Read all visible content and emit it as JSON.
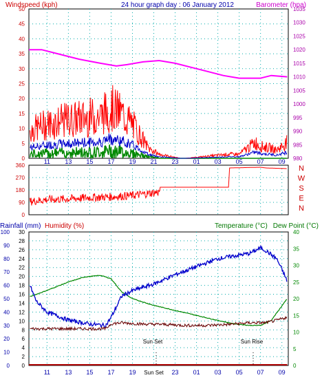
{
  "header": {
    "left_title": "Windspeed (kph)",
    "center_title": "24 hour graph day : 06 January 2012",
    "right_title": "Barometer (hpa)"
  },
  "lower_header": {
    "rainfall": "Rainfall (mm)",
    "humidity": "Humidity (%)",
    "temperature": "Temperature (°C)",
    "dewpoint": "Dew Point (°C)"
  },
  "annotations": {
    "sunset": "Sun Set",
    "sunrise": "Sun Rise"
  },
  "colors": {
    "windspeed": "#ff0000",
    "wind_blue": "#0000cc",
    "wind_green": "#008800",
    "barometer": "#ff00ff",
    "direction": "#ff0000",
    "humidity": "#0000cc",
    "temperature": "#008800",
    "dewpoint": "#660000",
    "rain": "#aa0000",
    "rain_axis": "#0000aa",
    "left_axis": "#cc0000",
    "right_axis": "#aa00aa",
    "bg": "#ffffff",
    "grid": "#00aaaa"
  },
  "chart_data": [
    {
      "type": "line",
      "name_panel": "wind-barometer",
      "title": "24 hour graph day : 06 January 2012",
      "x_ticks": [
        "11",
        "13",
        "15",
        "17",
        "19",
        "21",
        "23",
        "01",
        "03",
        "05",
        "07",
        "09"
      ],
      "left_axis": {
        "label": "Windspeed (kph)",
        "ticks": [
          "0",
          "5",
          "10",
          "15",
          "20",
          "25",
          "30",
          "35",
          "40",
          "45",
          "50"
        ],
        "ylim": [
          0,
          50
        ]
      },
      "right_axis": {
        "label": "Barometer (hpa)",
        "ticks": [
          "980",
          "985",
          "990",
          "995",
          "1000",
          "1005",
          "1010",
          "1015",
          "1020",
          "1025",
          "1030",
          "1035"
        ],
        "ylim": [
          980,
          1035
        ]
      },
      "barometer": {
        "x": [
          9.3,
          10.5,
          12,
          14,
          16,
          17.5,
          18.5,
          20,
          21.5,
          23,
          24.5,
          26,
          27.5,
          29,
          30,
          31,
          32,
          33.5,
          33.5
        ],
        "values": [
          1020,
          1020,
          1018.5,
          1016.5,
          1015,
          1014,
          1014.5,
          1015.5,
          1016,
          1015,
          1013.5,
          1012,
          1010.5,
          1009.5,
          1009.5,
          1009.5,
          1010.5,
          1010,
          1010
        ]
      },
      "gust_envelope": {
        "x": [
          9.5,
          11,
          13,
          14.5,
          16,
          17,
          18,
          19,
          20.5,
          21.5,
          22.5,
          23.5,
          24,
          28,
          29,
          30.5,
          31,
          32,
          32.5,
          33.5
        ],
        "values": [
          14,
          17,
          19,
          20,
          21,
          25,
          22,
          17,
          5,
          2,
          1,
          0,
          0,
          2,
          2,
          8,
          6,
          5,
          4,
          8
        ]
      }
    },
    {
      "type": "line",
      "name_panel": "wind-direction",
      "x_ticks": [
        "11",
        "13",
        "15",
        "17",
        "19",
        "21",
        "23",
        "01",
        "03",
        "05",
        "07",
        "09"
      ],
      "left_axis": {
        "ticks": [
          "0",
          "90",
          "180",
          "270",
          "360"
        ],
        "ylim": [
          0,
          360
        ]
      },
      "right_axis": {
        "ticks": [
          "N",
          "W",
          "S",
          "E",
          "N"
        ]
      },
      "direction": {
        "x": [
          9.3,
          11,
          13,
          15,
          17,
          19,
          21.5,
          21.6,
          28,
          28.1,
          31,
          31.5,
          33.5
        ],
        "values": [
          95,
          110,
          115,
          125,
          130,
          140,
          165,
          200,
          200,
          340,
          345,
          340,
          335
        ]
      }
    },
    {
      "type": "line",
      "name_panel": "humidity-temperature",
      "x_ticks": [
        "11",
        "13",
        "15",
        "17",
        "19",
        "Sun Set",
        "23",
        "01",
        "03",
        "05",
        "07",
        "09"
      ],
      "rain_axis": {
        "label": "Rainfall (mm)",
        "ticks": [
          "0",
          "2",
          "4",
          "6",
          "8",
          "10",
          "12",
          "14",
          "16",
          "18",
          "20",
          "22",
          "24",
          "26",
          "28",
          "30"
        ],
        "ylim": [
          0,
          30
        ]
      },
      "humidity_axis": {
        "label": "Humidity (%)",
        "ticks": [
          "0",
          "10",
          "20",
          "30",
          "40",
          "50",
          "60",
          "70",
          "80",
          "90",
          "100"
        ],
        "ylim": [
          0,
          100
        ]
      },
      "temperature_axis": {
        "label": "Temperature (°C)",
        "ticks": [
          "0",
          "5",
          "10",
          "15",
          "20",
          "25",
          "30",
          "35",
          "40"
        ],
        "ylim": [
          0,
          40
        ]
      },
      "temperature": {
        "x": [
          9.3,
          11,
          13,
          14.5,
          16,
          17,
          18,
          19,
          21,
          23,
          25,
          27,
          28.5,
          30,
          31,
          32,
          33.5
        ],
        "values": [
          20.5,
          22.5,
          25,
          26.5,
          27,
          26,
          22,
          20,
          18,
          16.5,
          15,
          13.5,
          12.5,
          12,
          12,
          13.5,
          20
        ]
      },
      "humidity": {
        "x": [
          9.3,
          10,
          11,
          13,
          15,
          16.5,
          17,
          18,
          19,
          21,
          23,
          25,
          27,
          28.5,
          30,
          31,
          31.5,
          32.5,
          33,
          33.5
        ],
        "values": [
          62,
          48,
          40,
          34,
          31,
          30,
          36,
          52,
          56,
          61,
          68,
          74,
          80,
          82,
          84,
          88,
          86,
          80,
          72,
          63
        ]
      },
      "dewpoint": {
        "x": [
          9.3,
          11,
          13,
          15,
          16.5,
          17,
          18,
          20,
          22,
          24,
          26,
          28,
          30,
          31.5,
          32.5,
          33.5
        ],
        "values": [
          11,
          11,
          11,
          11,
          11,
          12.5,
          12.8,
          12.4,
          12.3,
          12,
          12,
          12.3,
          12.8,
          12.8,
          13.5,
          14.5
        ]
      },
      "rainfall": {
        "x": [
          9.3,
          33.5
        ],
        "values": [
          0,
          0
        ]
      }
    }
  ]
}
